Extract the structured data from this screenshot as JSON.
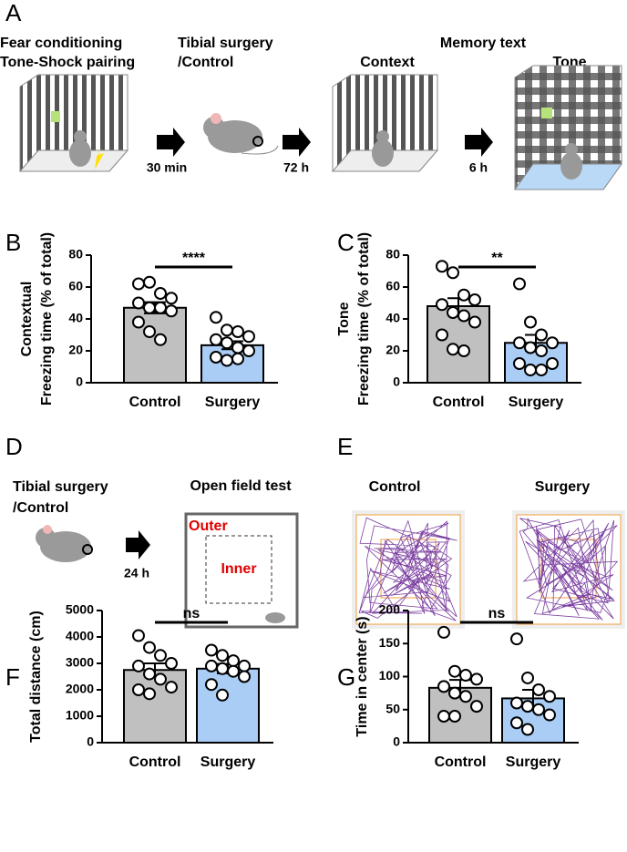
{
  "figure": {
    "A": {
      "label": "A",
      "step1": [
        "Fear conditioning",
        "Tone-Shock pairing"
      ],
      "step2": [
        "Tibial surgery",
        "/Control"
      ],
      "memory": "Memory text",
      "context": "Context",
      "tone": "Tone",
      "times": [
        "30 min",
        "72 h",
        "6 h"
      ]
    },
    "D": {
      "label": "D",
      "step": [
        "Tibial surgery",
        "/Control"
      ],
      "time": "24 h",
      "test": "Open field test",
      "outer": "Outer",
      "inner": "Inner"
    },
    "E": {
      "label": "E",
      "groups": [
        "Control",
        "Surgery"
      ]
    }
  },
  "chart_data": [
    {
      "type": "bar",
      "panel": "B",
      "ylabel": [
        "Contextual",
        "Freezing time  (% of total)"
      ],
      "categories": [
        "Control",
        "Surgery"
      ],
      "colors": [
        "#c0c0c0",
        "#a9cdf5"
      ],
      "values": [
        47,
        23.5
      ],
      "errors": [
        3.5,
        2.5
      ],
      "points": [
        [
          62,
          63,
          56,
          53,
          50,
          47,
          47,
          45,
          38,
          32,
          27
        ],
        [
          41,
          33,
          32,
          29,
          27,
          25,
          22,
          20,
          16,
          14,
          15
        ]
      ],
      "significance": "****",
      "ylim": [
        0,
        80
      ],
      "yticks": [
        0,
        20,
        40,
        60,
        80
      ]
    },
    {
      "type": "bar",
      "panel": "C",
      "ylabel": [
        "Tone",
        "Freezing time  (% of total)"
      ],
      "categories": [
        "Control",
        "Surgery"
      ],
      "colors": [
        "#c0c0c0",
        "#a9cdf5"
      ],
      "values": [
        48,
        25
      ],
      "errors": [
        5,
        5
      ],
      "points": [
        [
          73,
          69,
          55,
          52,
          49,
          44,
          42,
          38,
          30,
          21,
          20
        ],
        [
          62,
          38,
          30,
          25,
          25,
          22,
          20,
          12,
          12,
          8,
          8
        ]
      ],
      "significance": "**",
      "ylim": [
        0,
        80
      ],
      "yticks": [
        0,
        20,
        40,
        60,
        80
      ]
    },
    {
      "type": "bar",
      "panel": "F",
      "ylabel": [
        "Total distance (cm)"
      ],
      "categories": [
        "Control",
        "Surgery"
      ],
      "colors": [
        "#c0c0c0",
        "#a9cdf5"
      ],
      "values": [
        2750,
        2800
      ],
      "errors": [
        250,
        180
      ],
      "points": [
        [
          4050,
          3600,
          3300,
          3000,
          2900,
          2600,
          2400,
          2100,
          2000,
          1850
        ],
        [
          3500,
          3300,
          3100,
          2900,
          2900,
          2800,
          2700,
          2500,
          2200,
          1800
        ]
      ],
      "significance": "ns",
      "ylim": [
        0,
        5000
      ],
      "yticks": [
        0,
        1000,
        2000,
        3000,
        4000,
        5000
      ]
    },
    {
      "type": "bar",
      "panel": "G",
      "ylabel": [
        "Time in center (s)"
      ],
      "categories": [
        "Control",
        "Surgery"
      ],
      "colors": [
        "#c0c0c0",
        "#a9cdf5"
      ],
      "values": [
        83,
        67
      ],
      "errors": [
        12,
        13
      ],
      "points": [
        [
          167,
          108,
          102,
          96,
          85,
          75,
          70,
          55,
          40,
          40
        ],
        [
          157,
          98,
          80,
          70,
          60,
          55,
          50,
          42,
          30,
          20
        ]
      ],
      "significance": "ns",
      "ylim": [
        0,
        200
      ],
      "yticks": [
        0,
        50,
        100,
        150,
        200
      ]
    }
  ]
}
